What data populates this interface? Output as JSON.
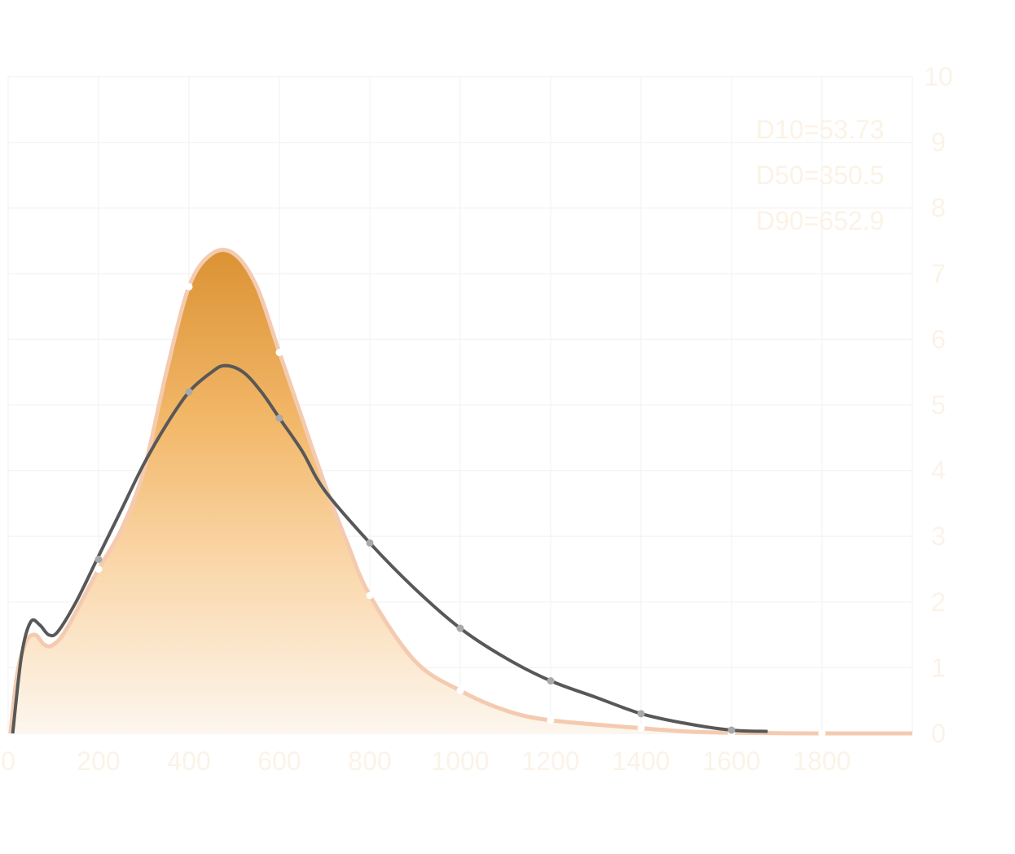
{
  "chart_data": {
    "type": "area",
    "title": "",
    "xlabel": "",
    "ylabel": "",
    "xlim": [
      0,
      2000
    ],
    "ylim": [
      0,
      10
    ],
    "x_ticks": [
      "0",
      "200",
      "400",
      "600",
      "800",
      "1000",
      "1200",
      "1400",
      "1600",
      "1800"
    ],
    "y_ticks": [
      "0",
      "1",
      "2",
      "3",
      "4",
      "5",
      "6",
      "7",
      "8",
      "9",
      "10"
    ],
    "y_axis_position": "right",
    "grid": true,
    "annotations": [
      "D10=53.73",
      "D50=350.5",
      "D90=652.9"
    ],
    "series": [
      {
        "style": "filled-area",
        "x": [
          5,
          20,
          40,
          60,
          80,
          100,
          130,
          200,
          250,
          300,
          350,
          400,
          450,
          500,
          550,
          600,
          650,
          700,
          750,
          800,
          900,
          1000,
          1100,
          1200,
          1400,
          1500,
          1600,
          1800,
          2000
        ],
        "y": [
          0,
          0.9,
          1.4,
          1.5,
          1.35,
          1.35,
          1.6,
          2.5,
          3.1,
          4.0,
          5.5,
          6.8,
          7.3,
          7.3,
          6.8,
          5.8,
          4.8,
          3.8,
          2.9,
          2.1,
          1.1,
          0.65,
          0.35,
          0.2,
          0.08,
          0.03,
          0.01,
          0,
          0
        ],
        "markers_x": [
          200,
          400,
          600,
          800,
          1000,
          1200,
          1400,
          1600,
          1800
        ],
        "markers_y": [
          2.5,
          6.8,
          5.8,
          2.1,
          0.65,
          0.2,
          0.08,
          0.01,
          0
        ],
        "colors": {
          "line": "#f4cbb0",
          "fill_top": "#db9234",
          "fill_bottom": "#fdf6ee",
          "marker": "#ffffff"
        }
      },
      {
        "style": "line",
        "x": [
          10,
          30,
          50,
          70,
          90,
          110,
          150,
          200,
          250,
          300,
          350,
          400,
          450,
          480,
          520,
          560,
          600,
          650,
          700,
          800,
          900,
          1000,
          1100,
          1200,
          1300,
          1400,
          1500,
          1600,
          1680
        ],
        "y": [
          0,
          1.2,
          1.7,
          1.65,
          1.5,
          1.55,
          2.0,
          2.7,
          3.4,
          4.1,
          4.7,
          5.2,
          5.5,
          5.6,
          5.5,
          5.2,
          4.8,
          4.3,
          3.7,
          2.9,
          2.2,
          1.6,
          1.15,
          0.8,
          0.55,
          0.3,
          0.15,
          0.05,
          0.03
        ],
        "markers_x": [
          200,
          400,
          600,
          800,
          1000,
          1200,
          1400,
          1600
        ],
        "markers_y": [
          2.65,
          5.2,
          4.8,
          2.9,
          1.6,
          0.8,
          0.3,
          0.05
        ],
        "colors": {
          "line": "#585858",
          "marker": "#a9a9a9"
        }
      }
    ]
  }
}
